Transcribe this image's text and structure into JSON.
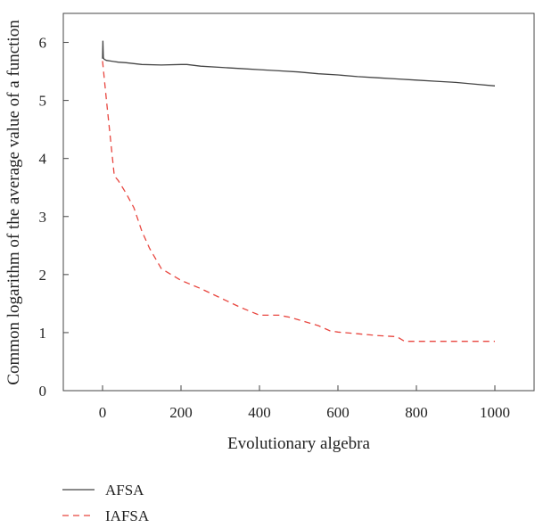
{
  "chart_data": {
    "type": "line",
    "xlabel": "Evolutionary algebra",
    "ylabel": "Common logarithm of the average value of a function",
    "xlim": [
      -100,
      1100
    ],
    "ylim": [
      0,
      6.5
    ],
    "xticks": [
      0,
      200,
      400,
      600,
      800,
      1000
    ],
    "yticks": [
      0,
      1,
      2,
      3,
      4,
      5,
      6
    ],
    "grid": false,
    "legend_position": "bottom-left",
    "series": [
      {
        "name": "AFSA",
        "color": "#444444",
        "dash": "solid",
        "x": [
          0,
          1,
          2,
          4,
          10,
          20,
          40,
          60,
          100,
          150,
          200,
          215,
          250,
          300,
          350,
          400,
          450,
          500,
          550,
          600,
          650,
          700,
          750,
          800,
          850,
          900,
          950,
          1000
        ],
        "y": [
          5.72,
          6.03,
          5.74,
          5.71,
          5.69,
          5.68,
          5.66,
          5.65,
          5.62,
          5.61,
          5.62,
          5.62,
          5.59,
          5.57,
          5.55,
          5.53,
          5.51,
          5.49,
          5.46,
          5.44,
          5.41,
          5.39,
          5.37,
          5.35,
          5.33,
          5.31,
          5.28,
          5.25
        ]
      },
      {
        "name": "IAFSA",
        "color": "#e8463f",
        "dash": "dashed",
        "x": [
          0,
          10,
          20,
          30,
          40,
          60,
          80,
          100,
          120,
          150,
          200,
          250,
          300,
          350,
          400,
          450,
          480,
          500,
          550,
          580,
          600,
          650,
          700,
          750,
          770,
          800,
          850,
          900,
          950,
          1000
        ],
        "y": [
          5.68,
          5.0,
          4.35,
          3.7,
          3.62,
          3.4,
          3.15,
          2.75,
          2.45,
          2.1,
          1.9,
          1.76,
          1.6,
          1.44,
          1.3,
          1.3,
          1.26,
          1.22,
          1.12,
          1.03,
          1.01,
          0.98,
          0.95,
          0.93,
          0.85,
          0.85,
          0.85,
          0.85,
          0.85,
          0.85
        ]
      }
    ]
  }
}
